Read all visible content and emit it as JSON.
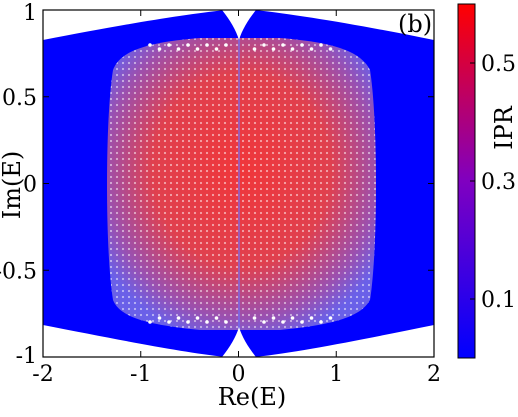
{
  "chart_data": {
    "type": "scatter",
    "panel_label": "(b)",
    "xlabel": "Re(E)",
    "ylabel": "Im(E)",
    "xlim": [
      -2,
      2
    ],
    "ylim": [
      -1,
      1
    ],
    "xticks": [
      -2,
      -1,
      0,
      1,
      2
    ],
    "xtick_labels": [
      "-2",
      "-1",
      "0",
      "1",
      "2"
    ],
    "yticks": [
      1,
      0.5,
      0,
      -0.5,
      -1
    ],
    "ytick_labels": [
      "1",
      "0.5",
      "0",
      "-0.5",
      "-1"
    ],
    "grid": false,
    "colorbar": {
      "label": "IPR",
      "range": [
        0,
        0.6
      ],
      "ticks": [
        0.5,
        0.3,
        0.1
      ],
      "tick_labels": [
        "0.5",
        "0.3",
        "0.1"
      ],
      "colormap": [
        "#0000ff",
        "#ff0000"
      ]
    },
    "regions": {
      "outer_band": {
        "description_color": "#0000ff"
      },
      "inner_region": {
        "re_extent": [
          -1.45,
          1.45
        ],
        "im_extent": [
          -0.8,
          0.85
        ]
      }
    },
    "colors": {
      "low_ipr": "#0000ff",
      "high_ipr": "#ff0000"
    }
  }
}
